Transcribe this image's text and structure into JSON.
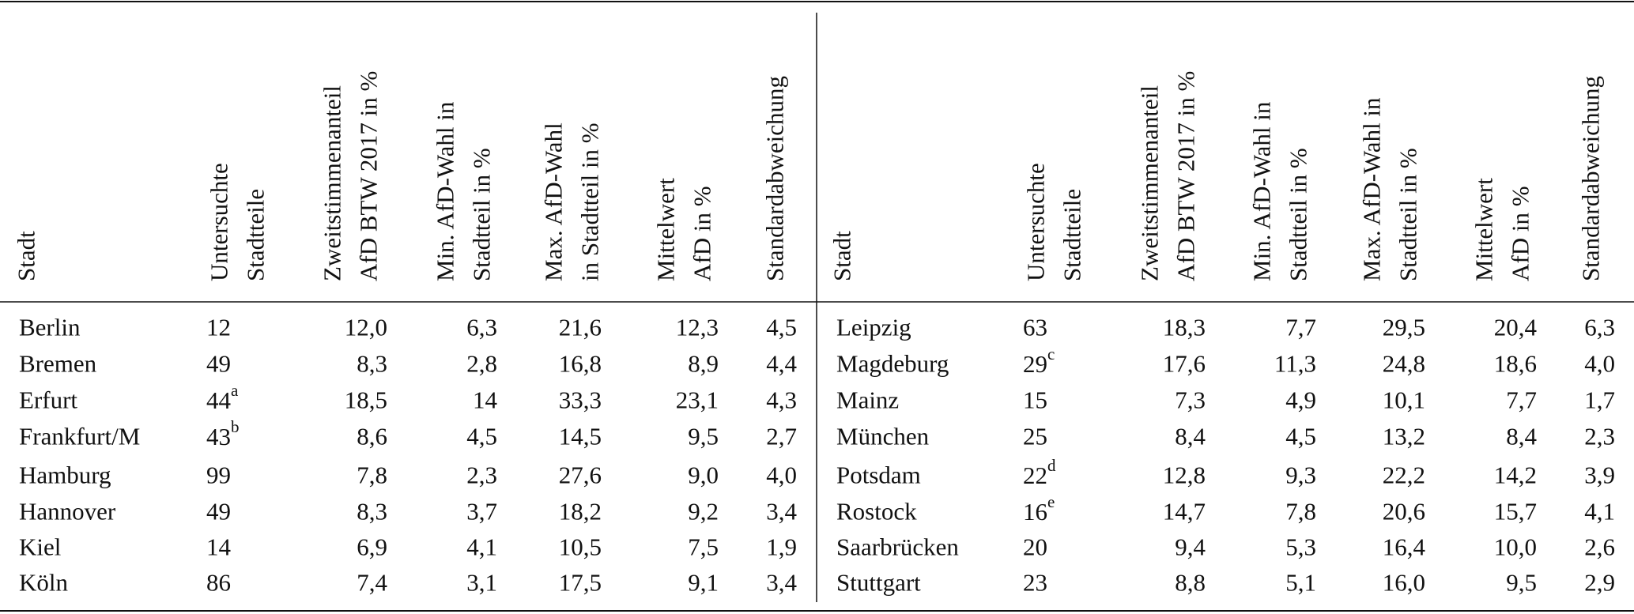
{
  "tables": [
    {
      "headers": [
        [
          "Stadt"
        ],
        [
          "Untersuchte",
          "Stadtteile"
        ],
        [
          "Zweitstimmenanteil",
          "AfD BTW 2017 in %"
        ],
        [
          "Min. AfD-Wahl in",
          "Stadtteil in %"
        ],
        [
          "Max. AfD-Wahl",
          "in Stadtteil in %"
        ],
        [
          "Mittelwert",
          "AfD in %"
        ],
        [
          "Standardabweichung"
        ]
      ],
      "rows": [
        [
          "Berlin",
          "12",
          "12,0",
          "6,3",
          "21,6",
          "12,3",
          "4,5"
        ],
        [
          "Bremen",
          "49",
          "8,3",
          "2,8",
          "16,8",
          "8,9",
          "4,4"
        ],
        [
          "Erfurt",
          {
            "text": "44",
            "sup": "a"
          },
          "18,5",
          "14",
          "33,3",
          "23,1",
          "4,3"
        ],
        [
          "Frankfurt/M",
          {
            "text": "43",
            "sup": "b"
          },
          "8,6",
          "4,5",
          "14,5",
          "9,5",
          "2,7"
        ],
        [
          "Hamburg",
          "99",
          "7,8",
          "2,3",
          "27,6",
          "9,0",
          "4,0"
        ],
        [
          "Hannover",
          "49",
          "8,3",
          "3,7",
          "18,2",
          "9,2",
          "3,4"
        ],
        [
          "Kiel",
          "14",
          "6,9",
          "4,1",
          "10,5",
          "7,5",
          "1,9"
        ],
        [
          "Köln",
          "86",
          "7,4",
          "3,1",
          "17,5",
          "9,1",
          "3,4"
        ]
      ]
    },
    {
      "headers": [
        [
          "Stadt"
        ],
        [
          "Untersuchte",
          "Stadtteile"
        ],
        [
          "Zweitstimmenanteil",
          "AfD BTW 2017 in %"
        ],
        [
          "Min. AfD-Wahl in",
          "Stadtteil in %"
        ],
        [
          "Max. AfD-Wahl in",
          "Stadtteil in %"
        ],
        [
          "Mittelwert",
          "AfD in %"
        ],
        [
          "Standardabweichung"
        ]
      ],
      "rows": [
        [
          "Leipzig",
          "63",
          "18,3",
          "7,7",
          "29,5",
          "20,4",
          "6,3"
        ],
        [
          "Magdeburg",
          {
            "text": "29",
            "sup": "c"
          },
          "17,6",
          "11,3",
          "24,8",
          "18,6",
          "4,0"
        ],
        [
          "Mainz",
          "15",
          "7,3",
          "4,9",
          "10,1",
          "7,7",
          "1,7"
        ],
        [
          "München",
          "25",
          "8,4",
          "4,5",
          "13,2",
          "8,4",
          "2,3"
        ],
        [
          "Potsdam",
          {
            "text": "22",
            "sup": "d"
          },
          "12,8",
          "9,3",
          "22,2",
          "14,2",
          "3,9"
        ],
        [
          "Rostock",
          {
            "text": "16",
            "sup": "e"
          },
          "14,7",
          "7,8",
          "20,6",
          "15,7",
          "4,1"
        ],
        [
          "Saarbrücken",
          "20",
          "9,4",
          "5,3",
          "16,4",
          "10,0",
          "2,6"
        ],
        [
          "Stuttgart",
          "23",
          "8,8",
          "5,1",
          "16,0",
          "9,5",
          "2,9"
        ]
      ]
    }
  ]
}
